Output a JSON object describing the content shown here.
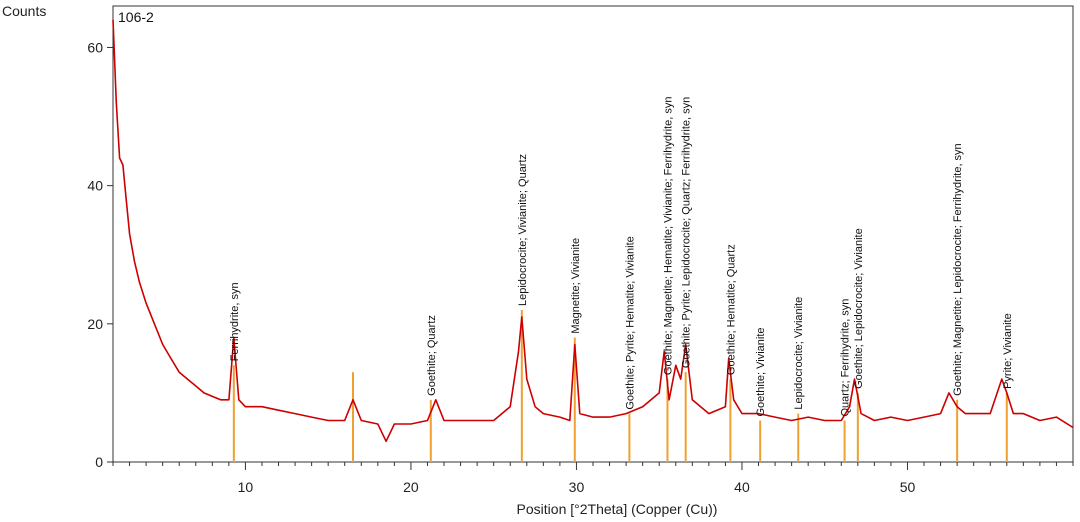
{
  "chart_data": {
    "type": "line",
    "title": "",
    "sample_label": "106-2",
    "ylabel": "Counts",
    "xlabel": "Position [°2Theta] (Copper (Cu))",
    "xlim": [
      2,
      60
    ],
    "ylim": [
      0,
      66
    ],
    "x_ticks": [
      10,
      20,
      30,
      40,
      50
    ],
    "y_ticks": [
      0,
      20,
      40,
      60
    ],
    "grid": false,
    "line_color": "#cc0000",
    "marker_color": "#f0a030",
    "series": [
      {
        "x": [
          2.0,
          2.2,
          2.4,
          2.6,
          2.8,
          3.0,
          3.3,
          3.6,
          4.0,
          4.5,
          5.0,
          5.5,
          6.0,
          6.5,
          7.0,
          7.5,
          8.0,
          8.5,
          9.0,
          9.3,
          9.6,
          10.0,
          11.0,
          12.0,
          13.0,
          14.0,
          15.0,
          16.0,
          16.5,
          17.0,
          18.0,
          18.5,
          19.0,
          20.0,
          21.0,
          21.5,
          22.0,
          23.0,
          24.0,
          25.0,
          26.0,
          26.5,
          26.7,
          27.0,
          27.5,
          28.0,
          29.0,
          29.6,
          29.9,
          30.2,
          31.0,
          32.0,
          33.0,
          34.0,
          35.0,
          35.3,
          35.6,
          36.0,
          36.3,
          36.6,
          37.0,
          38.0,
          39.0,
          39.2,
          39.5,
          40.0,
          41.0,
          42.0,
          43.0,
          44.0,
          45.0,
          46.0,
          46.5,
          46.8,
          47.2,
          48.0,
          49.0,
          50.0,
          51.0,
          52.0,
          52.5,
          53.0,
          53.5,
          54.0,
          55.0,
          55.7,
          56.0,
          56.4,
          57.0,
          58.0,
          59.0,
          60.0
        ],
        "y": [
          64,
          52,
          44,
          43,
          38,
          33,
          29,
          26,
          23,
          20,
          17,
          15,
          13,
          12,
          11,
          10,
          9.5,
          9,
          9,
          18,
          9,
          8,
          8,
          7.5,
          7,
          6.5,
          6,
          6,
          9,
          6,
          5.5,
          3,
          5.5,
          5.5,
          6,
          9,
          6,
          6,
          6,
          6,
          8,
          16,
          21,
          12,
          8,
          7,
          6.5,
          6,
          17,
          7,
          6.5,
          6.5,
          7,
          8,
          10,
          16,
          9,
          14,
          12,
          17,
          9,
          7,
          8,
          15,
          9,
          7,
          7,
          6.5,
          6,
          6.5,
          6,
          6,
          8,
          12,
          7,
          6,
          6.5,
          6,
          6.5,
          7,
          10,
          8,
          7,
          7,
          7,
          12,
          10,
          7,
          7,
          6,
          6.5,
          5
        ]
      }
    ],
    "peaks": [
      {
        "x": 9.3,
        "height": 14,
        "label": "Ferrihydrite, syn"
      },
      {
        "x": 16.5,
        "height": 13,
        "label": ""
      },
      {
        "x": 21.2,
        "height": 9,
        "label": "Goethite; Quartz"
      },
      {
        "x": 26.7,
        "height": 22,
        "label": "Lepidocrocite; Vivianite; Quartz"
      },
      {
        "x": 29.9,
        "height": 18,
        "label": "Magnetite; Vivianite"
      },
      {
        "x": 33.2,
        "height": 7,
        "label": "Goethite; Pyrite; Hematite; Vivianite"
      },
      {
        "x": 35.5,
        "height": 12,
        "label": "Goethite; Magnetite; Hematite; Vivianite; Ferrihydrite, syn"
      },
      {
        "x": 36.6,
        "height": 13,
        "label": "Goethite; Pyrite; Lepidocrocite; Quartz; Ferrihydrite, syn"
      },
      {
        "x": 39.3,
        "height": 12,
        "label": "Goethite; Hematite; Quartz"
      },
      {
        "x": 41.1,
        "height": 6,
        "label": "Goethite; Vivianite"
      },
      {
        "x": 43.4,
        "height": 7,
        "label": "Lepidocrocite; Vivianite"
      },
      {
        "x": 46.2,
        "height": 6,
        "label": "Quartz; Ferrihydrite, syn"
      },
      {
        "x": 47.0,
        "height": 10,
        "label": "Goethite; Lepidocrocite; Vivianite"
      },
      {
        "x": 53.0,
        "height": 9,
        "label": "Goethite; Magnetite; Lepidocrocite; Ferrihydrite, syn"
      },
      {
        "x": 56.0,
        "height": 10,
        "label": "Pyrite; Vivianite"
      }
    ]
  }
}
